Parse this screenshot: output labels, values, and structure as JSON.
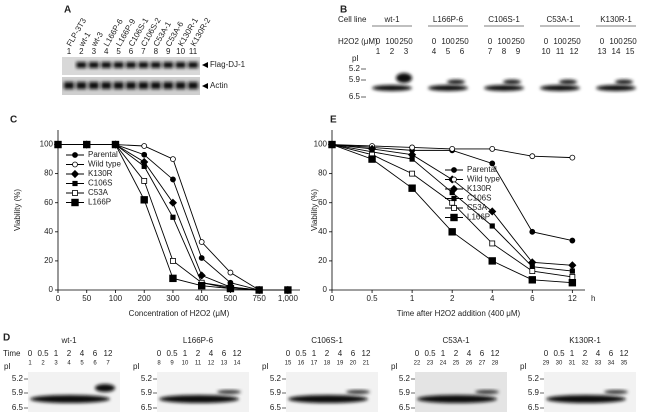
{
  "panel_a": {
    "label": "A",
    "lanes": [
      "FLP-3T3",
      "wt-1",
      "wt-3",
      "L166P-6",
      "L166P-9",
      "C106S-1",
      "C106S-2",
      "C53A-1",
      "C53A-6",
      "K130R-1",
      "K130R-2"
    ],
    "lane_numbers": [
      1,
      2,
      3,
      4,
      5,
      6,
      7,
      8,
      9,
      10,
      11
    ],
    "bands": [
      "Flag-DJ-1",
      "Actin"
    ]
  },
  "panel_b": {
    "label": "B",
    "row_label": "Cell line",
    "groups": [
      "wt-1",
      "L166P-6",
      "C106S-1",
      "C53A-1",
      "K130R-1"
    ],
    "dose_label": "H2O2 (μM)",
    "doses": [
      "0",
      "100",
      "250"
    ],
    "lane_numbers": [
      1,
      2,
      3,
      4,
      5,
      6,
      7,
      8,
      9,
      10,
      11,
      12,
      13,
      14,
      15
    ],
    "pi_label": "pI",
    "pi_marks": [
      "5.2",
      "5.9",
      "6.5"
    ]
  },
  "chart_data": [
    {
      "type": "line",
      "panel_label": "C",
      "x_label": "Concentration of H2O2 (μM)",
      "y_label": "Viability (%)",
      "categories": [
        "0",
        "50",
        "100",
        "200",
        "300",
        "400",
        "500",
        "750",
        "1,000"
      ],
      "ylim": [
        0,
        110
      ],
      "yticks": [
        0,
        20,
        40,
        60,
        80,
        100
      ],
      "legend": "center-left",
      "series": [
        {
          "name": "Parental",
          "color": "#000000",
          "marker": "circle-filled",
          "values": [
            100,
            100,
            100,
            93,
            76,
            22,
            5,
            0,
            0
          ]
        },
        {
          "name": "Wild type",
          "color": "#000000",
          "marker": "circle-open",
          "values": [
            100,
            100,
            100,
            99,
            90,
            33,
            12,
            0,
            0
          ]
        },
        {
          "name": "K130R",
          "color": "#000000",
          "marker": "diamond",
          "values": [
            100,
            100,
            100,
            88,
            60,
            10,
            2,
            0,
            0
          ]
        },
        {
          "name": "C106S",
          "color": "#000000",
          "marker": "square-filled",
          "values": [
            100,
            100,
            100,
            85,
            50,
            5,
            2,
            0,
            0
          ]
        },
        {
          "name": "C53A",
          "color": "#000000",
          "marker": "square-open",
          "values": [
            100,
            100,
            100,
            75,
            20,
            5,
            1,
            0,
            0
          ]
        },
        {
          "name": "L166P",
          "color": "#000000",
          "marker": "square-large",
          "values": [
            100,
            100,
            100,
            62,
            8,
            3,
            1,
            0,
            0
          ]
        }
      ]
    },
    {
      "type": "line",
      "panel_label": "E",
      "x_label": "Time after H2O2 addition (400 μM)",
      "x_unit": "h",
      "y_label": "Viability (%)",
      "categories": [
        "0",
        "0.5",
        "1",
        "2",
        "4",
        "6",
        "12"
      ],
      "ylim": [
        0,
        110
      ],
      "yticks": [
        0,
        20,
        40,
        60,
        80,
        100
      ],
      "legend": "center-right",
      "series": [
        {
          "name": "Parental",
          "color": "#000000",
          "marker": "circle-filled",
          "values": [
            100,
            98,
            96,
            96,
            87,
            40,
            34
          ]
        },
        {
          "name": "Wild type",
          "color": "#000000",
          "marker": "circle-open",
          "values": [
            100,
            99,
            98,
            97,
            97,
            92,
            91
          ]
        },
        {
          "name": "K130R",
          "color": "#000000",
          "marker": "diamond",
          "values": [
            100,
            97,
            93,
            76,
            54,
            19,
            17
          ]
        },
        {
          "name": "C106S",
          "color": "#000000",
          "marker": "square-filled",
          "values": [
            100,
            95,
            90,
            67,
            44,
            16,
            13
          ]
        },
        {
          "name": "C53A",
          "color": "#000000",
          "marker": "square-open",
          "values": [
            100,
            93,
            80,
            60,
            32,
            13,
            9
          ]
        },
        {
          "name": "L166P",
          "color": "#000000",
          "marker": "square-large",
          "values": [
            100,
            90,
            70,
            40,
            20,
            7,
            5
          ]
        }
      ]
    }
  ],
  "panel_d": {
    "label": "D",
    "time_label": "Time",
    "groups": [
      "wt-1",
      "L166P-6",
      "C106S-1",
      "C53A-1",
      "K130R-1"
    ],
    "times": [
      "0",
      "0.5",
      "1",
      "2",
      "4",
      "6",
      "12"
    ],
    "lane_numbers": [
      1,
      2,
      3,
      4,
      5,
      6,
      7,
      8,
      9,
      10,
      11,
      12,
      13,
      14,
      15,
      16,
      17,
      18,
      19,
      20,
      21,
      22,
      23,
      24,
      25,
      26,
      27,
      28,
      29,
      30,
      31,
      32,
      33,
      34,
      35
    ],
    "pi_label": "pI",
    "pi_marks": [
      "5.2",
      "5.9",
      "6.5"
    ]
  }
}
